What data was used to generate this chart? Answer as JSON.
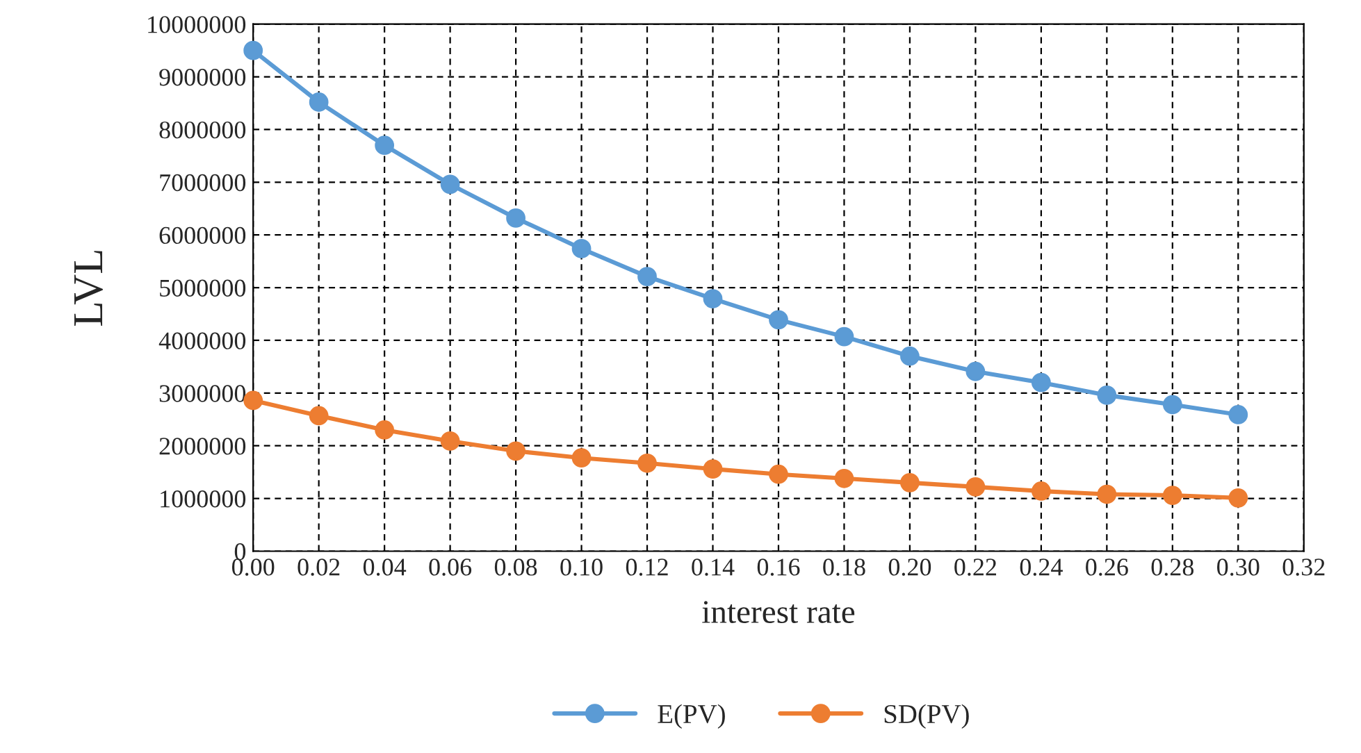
{
  "chart_data": {
    "type": "line",
    "xlabel": "interest rate",
    "ylabel": "LVL",
    "x": [
      0.0,
      0.02,
      0.04,
      0.06,
      0.08,
      0.1,
      0.12,
      0.14,
      0.16,
      0.18,
      0.2,
      0.22,
      0.24,
      0.26,
      0.28,
      0.3
    ],
    "series": [
      {
        "name": "E(PV)",
        "color": "#5b9bd5",
        "values": [
          9500000,
          8520000,
          7700000,
          6960000,
          6320000,
          5740000,
          5210000,
          4790000,
          4390000,
          4070000,
          3700000,
          3410000,
          3200000,
          2960000,
          2780000,
          2590000
        ]
      },
      {
        "name": "SD(PV)",
        "color": "#ed7d31",
        "values": [
          2860000,
          2570000,
          2300000,
          2090000,
          1900000,
          1770000,
          1670000,
          1560000,
          1460000,
          1380000,
          1300000,
          1220000,
          1140000,
          1080000,
          1060000,
          1010000
        ]
      }
    ],
    "xlim": [
      0,
      0.32
    ],
    "xticks": [
      {
        "value": 0,
        "label": "0.00"
      },
      {
        "value": 0.02,
        "label": "0.02"
      },
      {
        "value": 0.04,
        "label": "0.04"
      },
      {
        "value": 0.06,
        "label": "0.06"
      },
      {
        "value": 0.08,
        "label": "0.08"
      },
      {
        "value": 0.1,
        "label": "0.10"
      },
      {
        "value": 0.12,
        "label": "0.12"
      },
      {
        "value": 0.14,
        "label": "0.14"
      },
      {
        "value": 0.16,
        "label": "0.16"
      },
      {
        "value": 0.18,
        "label": "0.18"
      },
      {
        "value": 0.2,
        "label": "0.20"
      },
      {
        "value": 0.22,
        "label": "0.22"
      },
      {
        "value": 0.24,
        "label": "0.24"
      },
      {
        "value": 0.26,
        "label": "0.26"
      },
      {
        "value": 0.28,
        "label": "0.28"
      },
      {
        "value": 0.3,
        "label": "0.30"
      },
      {
        "value": 0.32,
        "label": "0.32"
      }
    ],
    "ylim": [
      0,
      10000000
    ],
    "yticks": [
      0,
      1000000,
      2000000,
      3000000,
      4000000,
      5000000,
      6000000,
      7000000,
      8000000,
      9000000,
      10000000
    ],
    "grid": true,
    "legend": "bottom",
    "marker": "circle",
    "line_style": "solid"
  }
}
